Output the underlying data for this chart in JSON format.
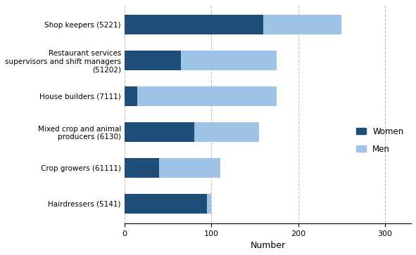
{
  "categories": [
    "Hairdressers (5141)",
    "Crop growers (61111)",
    "Mixed crop and animal\nproducers (6130)",
    "House builders (7111)",
    "Restaurant services\nsupervisors and shift managers\n(51202)",
    "Shop keepers (5221)"
  ],
  "women": [
    95,
    40,
    80,
    15,
    65,
    160
  ],
  "men": [
    5,
    70,
    75,
    160,
    110,
    90
  ],
  "women_color": "#1f4e79",
  "men_color": "#9dc3e6",
  "xlabel": "Number",
  "xlim": [
    0,
    330
  ],
  "xticks": [
    0,
    100,
    200,
    300
  ],
  "legend_women": "Women",
  "legend_men": "Men",
  "background_color": "#ffffff",
  "grid_color": "#c0c0c0"
}
